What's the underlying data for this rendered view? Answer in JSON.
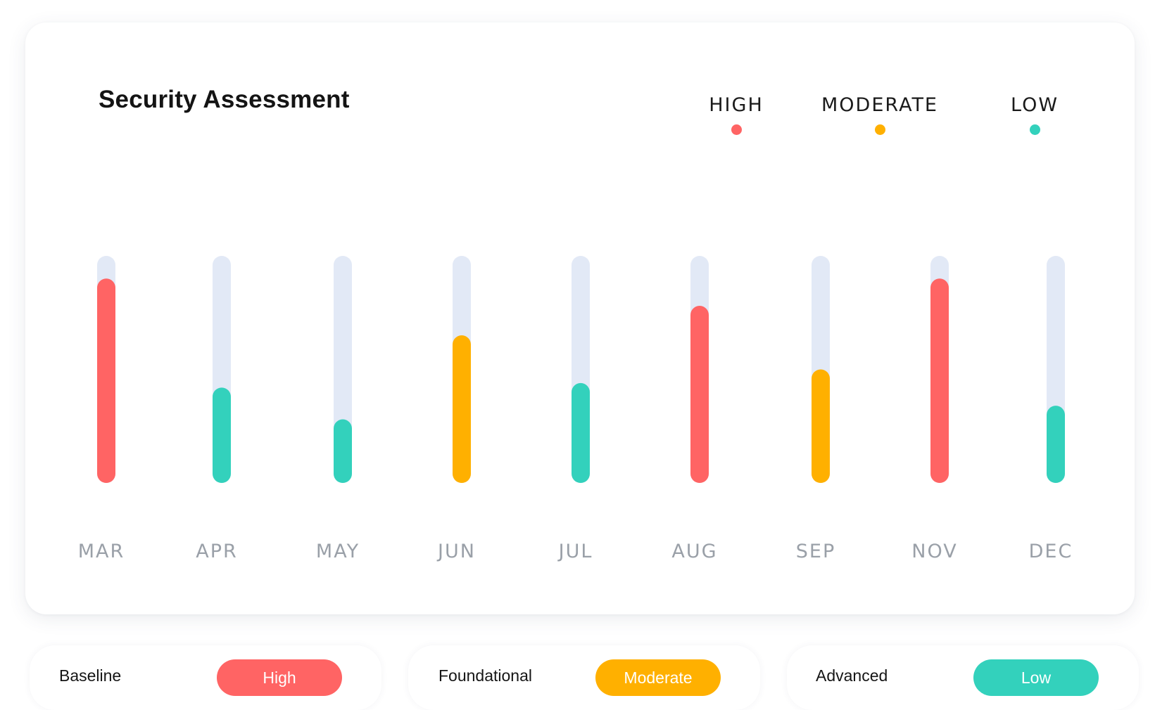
{
  "colors": {
    "high": "#FF6464",
    "moderate": "#FFB000",
    "low": "#33D1BC",
    "track": "#E2E9F6",
    "axis_text": "#9AA0A8"
  },
  "legend": [
    {
      "label": "HIGH",
      "color": "#FF6464"
    },
    {
      "label": "MODERATE",
      "color": "#FFB000"
    },
    {
      "label": "LOW",
      "color": "#33D1BC"
    }
  ],
  "chart_data": {
    "type": "bar",
    "title": "Security Assessment",
    "categories": [
      "MAR",
      "APR",
      "MAY",
      "JUN",
      "JUL",
      "AUG",
      "SEP",
      "NOV",
      "DEC"
    ],
    "values": [
      90,
      42,
      28,
      65,
      44,
      78,
      50,
      90,
      34
    ],
    "levels": [
      "high",
      "low",
      "low",
      "moderate",
      "low",
      "high",
      "moderate",
      "high",
      "low"
    ],
    "ylim": [
      0,
      100
    ],
    "grid": false,
    "legend_position": "top-right"
  },
  "tiers": [
    {
      "label": "Baseline",
      "badge": "High",
      "color": "#FF6464"
    },
    {
      "label": "Foundational",
      "badge": "Moderate",
      "color": "#FFB000"
    },
    {
      "label": "Advanced",
      "badge": "Low",
      "color": "#33D1BC"
    }
  ]
}
